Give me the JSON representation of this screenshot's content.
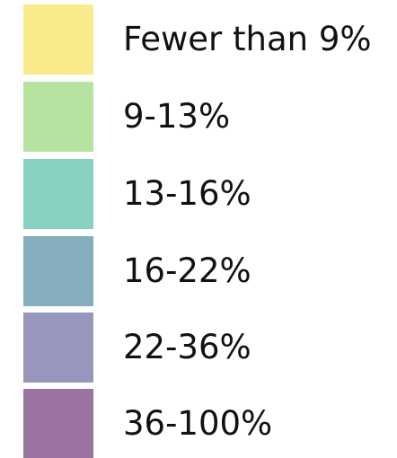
{
  "legend": {
    "items": [
      {
        "label": "Fewer than 9%",
        "color": "#f9eb8c"
      },
      {
        "label": "9-13%",
        "color": "#b7e3a0"
      },
      {
        "label": "13-16%",
        "color": "#86d1bf"
      },
      {
        "label": "16-22%",
        "color": "#85aebd"
      },
      {
        "label": "22-36%",
        "color": "#9996bd"
      },
      {
        "label": "36-100%",
        "color": "#9a73a0"
      }
    ]
  }
}
